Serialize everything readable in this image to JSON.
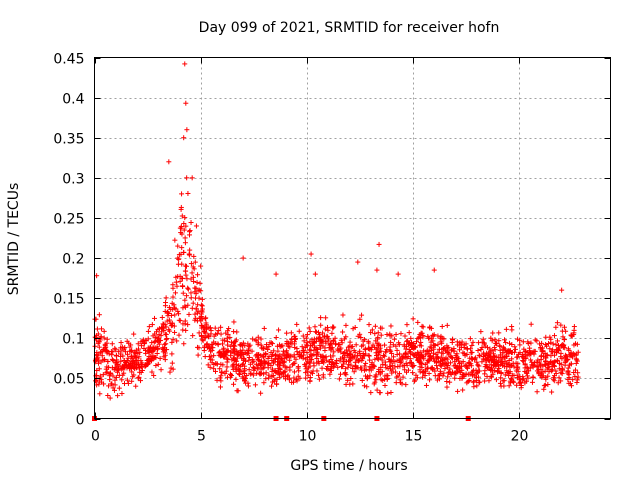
{
  "chart_data": {
    "type": "scatter",
    "title": "Day 099 of 2021, SRMTID for receiver hofn",
    "xlabel": "GPS time / hours",
    "ylabel": "SRMTID / TECUs",
    "xlim": [
      0,
      24.3
    ],
    "ylim": [
      0,
      0.45
    ],
    "x_ticks": [
      0,
      5,
      10,
      15,
      20
    ],
    "x_tick_labels": [
      "0",
      "5",
      "10",
      "15",
      "20"
    ],
    "y_ticks": [
      0,
      0.05,
      0.1,
      0.15,
      0.2,
      0.25,
      0.3,
      0.35,
      0.4,
      0.45
    ],
    "y_tick_labels": [
      "0",
      "0.05",
      "0.1",
      "0.15",
      "0.2",
      "0.25",
      "0.3",
      "0.35",
      "0.4",
      "0.45"
    ],
    "grid": true,
    "marker": "+",
    "color": "#ff0000",
    "zero_value_markers_x": [
      8.55,
      9.05,
      10.8,
      13.3,
      17.6
    ],
    "series": [
      {
        "name": "SRMTID",
        "envelope": {
          "x": [
            0.0,
            0.5,
            1.0,
            1.5,
            2.0,
            2.5,
            3.0,
            3.5,
            4.0,
            4.25,
            4.5,
            5.0,
            5.5,
            6.0,
            7.0,
            8.0,
            9.0,
            10.0,
            11.0,
            12.0,
            13.0,
            14.0,
            15.0,
            16.0,
            17.0,
            18.0,
            19.0,
            20.0,
            21.0,
            22.0,
            22.8
          ],
          "low": [
            0.03,
            0.02,
            0.025,
            0.03,
            0.035,
            0.04,
            0.045,
            0.05,
            0.07,
            0.08,
            0.08,
            0.06,
            0.05,
            0.03,
            0.03,
            0.03,
            0.04,
            0.04,
            0.04,
            0.035,
            0.03,
            0.03,
            0.035,
            0.035,
            0.03,
            0.035,
            0.035,
            0.03,
            0.03,
            0.03,
            0.035
          ],
          "high": [
            0.16,
            0.15,
            0.13,
            0.12,
            0.12,
            0.13,
            0.14,
            0.2,
            0.32,
            0.44,
            0.33,
            0.19,
            0.15,
            0.14,
            0.12,
            0.13,
            0.15,
            0.16,
            0.15,
            0.15,
            0.16,
            0.15,
            0.15,
            0.14,
            0.12,
            0.13,
            0.13,
            0.13,
            0.13,
            0.15,
            0.14
          ],
          "center": [
            0.09,
            0.07,
            0.06,
            0.07,
            0.07,
            0.08,
            0.09,
            0.11,
            0.16,
            0.2,
            0.18,
            0.12,
            0.09,
            0.08,
            0.07,
            0.07,
            0.075,
            0.08,
            0.085,
            0.08,
            0.075,
            0.075,
            0.08,
            0.08,
            0.07,
            0.07,
            0.075,
            0.07,
            0.07,
            0.075,
            0.075
          ]
        },
        "highlight_points": [
          {
            "x": 4.25,
            "y": 0.442
          },
          {
            "x": 4.3,
            "y": 0.393
          },
          {
            "x": 4.35,
            "y": 0.36
          },
          {
            "x": 4.2,
            "y": 0.35
          },
          {
            "x": 3.5,
            "y": 0.32
          },
          {
            "x": 4.6,
            "y": 0.3
          },
          {
            "x": 4.1,
            "y": 0.28
          },
          {
            "x": 4.8,
            "y": 0.24
          },
          {
            "x": 5.0,
            "y": 0.19
          },
          {
            "x": 7.0,
            "y": 0.2
          },
          {
            "x": 8.55,
            "y": 0.18
          },
          {
            "x": 10.2,
            "y": 0.205
          },
          {
            "x": 10.4,
            "y": 0.18
          },
          {
            "x": 12.4,
            "y": 0.195
          },
          {
            "x": 13.4,
            "y": 0.217
          },
          {
            "x": 13.3,
            "y": 0.185
          },
          {
            "x": 14.3,
            "y": 0.18
          },
          {
            "x": 16.0,
            "y": 0.185
          },
          {
            "x": 22.0,
            "y": 0.16
          },
          {
            "x": 0.1,
            "y": 0.178
          }
        ]
      }
    ]
  }
}
